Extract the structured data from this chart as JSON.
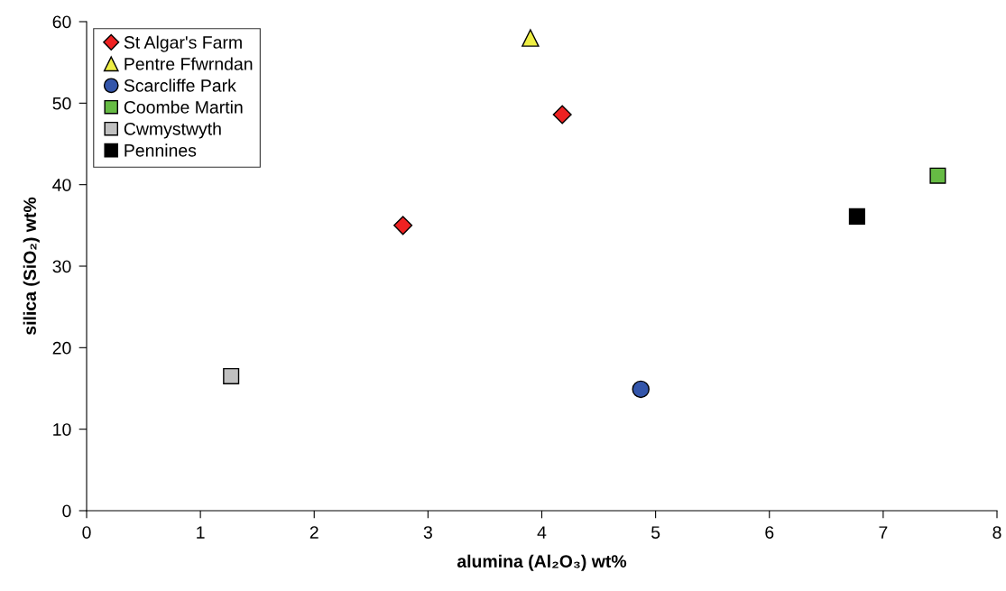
{
  "chart_data": {
    "type": "scatter",
    "xlabel": "alumina (Al₂O₃) wt%",
    "ylabel": "silica (SiO₂) wt%",
    "xlim": [
      0,
      8
    ],
    "xticks": [
      0,
      1,
      2,
      3,
      4,
      5,
      6,
      7,
      8
    ],
    "ylim": [
      0,
      60
    ],
    "yticks": [
      0,
      10,
      20,
      30,
      40,
      50,
      60
    ],
    "grid": false,
    "legend": "top left",
    "series": [
      {
        "name": "St Algar's Farm",
        "color": "#ee2222",
        "marker": "diamond",
        "x": [
          2.78,
          4.18
        ],
        "values": [
          35.0,
          48.6
        ]
      },
      {
        "name": "Pentre Ffwrndan",
        "color": "#eeee44",
        "marker": "triangle",
        "x": [
          3.9
        ],
        "values": [
          58.0
        ]
      },
      {
        "name": "Scarcliffe Park",
        "color": "#3355aa",
        "marker": "circle",
        "x": [
          4.87
        ],
        "values": [
          14.9
        ]
      },
      {
        "name": "Coombe Martin",
        "color": "#66bb44",
        "marker": "square",
        "x": [
          7.48
        ],
        "values": [
          41.1
        ]
      },
      {
        "name": "Cwmystwyth",
        "color": "#c0c0c0",
        "marker": "square",
        "x": [
          1.27
        ],
        "values": [
          16.5
        ]
      },
      {
        "name": "Pennines",
        "color": "#000000",
        "marker": "square",
        "x": [
          6.77
        ],
        "values": [
          36.1
        ]
      }
    ]
  }
}
